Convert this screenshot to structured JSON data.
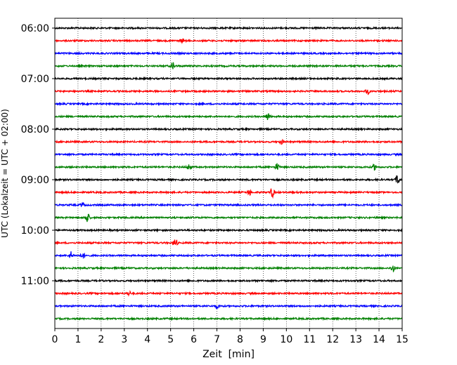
{
  "chart_data": {
    "type": "line",
    "title": "",
    "xlabel": "Zeit  [min]",
    "ylabel": "UTC (Lokalzeit = UTC + 02:00)",
    "xlim": [
      0,
      15
    ],
    "x_ticks": [
      "0",
      "1",
      "2",
      "3",
      "4",
      "5",
      "6",
      "7",
      "8",
      "9",
      "10",
      "11",
      "12",
      "13",
      "14",
      "15"
    ],
    "y_tick_labels": [
      "06:00",
      "07:00",
      "08:00",
      "09:00",
      "10:00",
      "11:00"
    ],
    "grid": "vertical dotted",
    "trace_colors": [
      "#000000",
      "#ff0000",
      "#0000ff",
      "#008000"
    ],
    "series": [
      {
        "start": "06:00",
        "events": []
      },
      {
        "start": "06:15",
        "events": [
          {
            "x": 5.5,
            "amp": 2.5
          }
        ]
      },
      {
        "start": "06:30",
        "events": []
      },
      {
        "start": "06:45",
        "events": [
          {
            "x": 5.1,
            "amp": 5
          }
        ]
      },
      {
        "start": "07:00",
        "events": []
      },
      {
        "start": "07:15",
        "events": [
          {
            "x": 13.5,
            "amp": 4
          }
        ]
      },
      {
        "start": "07:30",
        "events": []
      },
      {
        "start": "07:45",
        "events": [
          {
            "x": 9.2,
            "amp": 5
          }
        ]
      },
      {
        "start": "08:00",
        "events": []
      },
      {
        "start": "08:15",
        "events": [
          {
            "x": 9.8,
            "amp": 3
          }
        ]
      },
      {
        "start": "08:30",
        "events": []
      },
      {
        "start": "08:45",
        "events": [
          {
            "x": 5.8,
            "amp": 4
          },
          {
            "x": 9.6,
            "amp": 5
          },
          {
            "x": 13.8,
            "amp": 4
          }
        ]
      },
      {
        "start": "09:00",
        "events": [
          {
            "x": 14.8,
            "amp": 7
          }
        ]
      },
      {
        "start": "09:15",
        "events": [
          {
            "x": 8.4,
            "amp": 4
          },
          {
            "x": 9.4,
            "amp": 7
          }
        ]
      },
      {
        "start": "09:30",
        "events": [
          {
            "x": 1.2,
            "amp": 3
          }
        ]
      },
      {
        "start": "09:45",
        "events": [
          {
            "x": 1.4,
            "amp": 7
          }
        ]
      },
      {
        "start": "10:00",
        "events": []
      },
      {
        "start": "10:15",
        "events": [
          {
            "x": 5.2,
            "amp": 6
          }
        ]
      },
      {
        "start": "10:30",
        "events": [
          {
            "x": 0.7,
            "amp": 5
          },
          {
            "x": 1.2,
            "amp": 4
          }
        ]
      },
      {
        "start": "10:45",
        "events": [
          {
            "x": 14.6,
            "amp": 5
          }
        ]
      },
      {
        "start": "11:00",
        "events": []
      },
      {
        "start": "11:15",
        "events": [
          {
            "x": 3.2,
            "amp": 3
          }
        ]
      },
      {
        "start": "11:30",
        "events": [
          {
            "x": 7.0,
            "amp": 3
          }
        ]
      },
      {
        "start": "11:45",
        "events": []
      }
    ]
  }
}
